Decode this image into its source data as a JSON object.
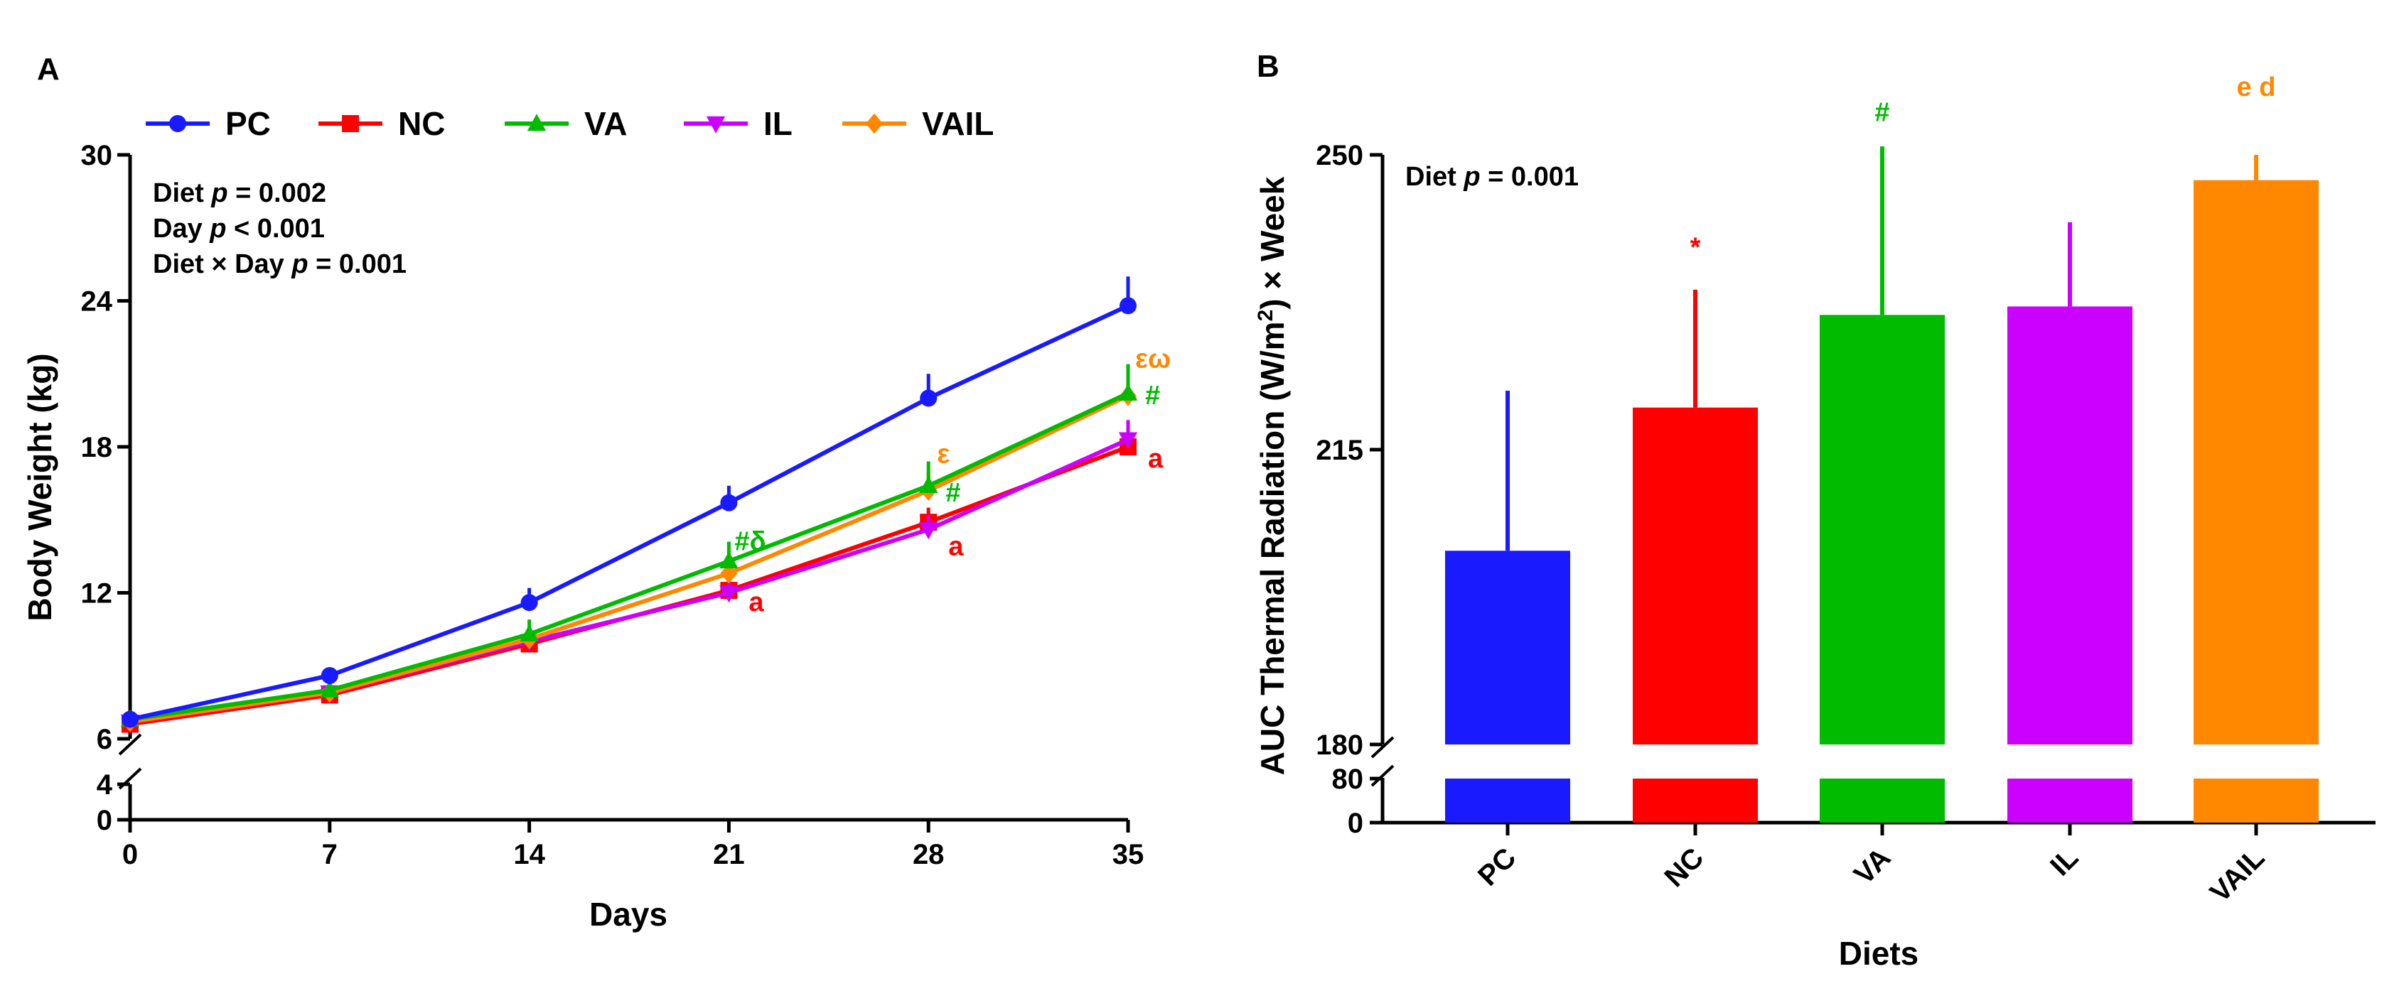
{
  "chart_data": [
    {
      "panel": "A",
      "type": "line",
      "xlabel": "Days",
      "ylabel": "Body Weight (kg)",
      "x": [
        0,
        7,
        14,
        21,
        28,
        35
      ],
      "xticks": [
        "0",
        "7",
        "14",
        "21",
        "28",
        "35"
      ],
      "yticks_upper": [
        "30",
        "24",
        "18",
        "12",
        "6"
      ],
      "yticks_lower": [
        "4",
        "0"
      ],
      "ylim": [
        0,
        30
      ],
      "axis_break": [
        4,
        6
      ],
      "legend_position": "top",
      "stats": [
        {
          "pre": "Diet ",
          "p": "p",
          "post": " = 0.002"
        },
        {
          "pre": "Day ",
          "p": "p",
          "post": " < 0.001"
        },
        {
          "pre": "Diet × Day ",
          "p": "p",
          "post": " = 0.001"
        }
      ],
      "series": [
        {
          "name": "PC",
          "marker": "circle",
          "color": "#1a1aff",
          "values": [
            6.8,
            8.6,
            11.6,
            15.7,
            20.0,
            23.8
          ],
          "err": [
            0.3,
            0.3,
            0.6,
            0.7,
            1.0,
            1.2
          ]
        },
        {
          "name": "NC",
          "marker": "square",
          "color": "#ff0000",
          "values": [
            6.6,
            7.8,
            9.9,
            12.1,
            14.9,
            18.0
          ],
          "err": [
            0.3,
            0.3,
            0.4,
            0.5,
            0.6,
            0.7
          ]
        },
        {
          "name": "VA",
          "marker": "triangle-up",
          "color": "#00bb00",
          "values": [
            6.8,
            8.0,
            10.3,
            13.3,
            16.4,
            20.2
          ],
          "err": [
            0.3,
            0.3,
            0.6,
            0.8,
            1.0,
            1.2
          ]
        },
        {
          "name": "IL",
          "marker": "triangle-down",
          "color": "#cc00ff",
          "values": [
            6.7,
            7.9,
            10.0,
            12.0,
            14.6,
            18.3
          ],
          "err": [
            0.3,
            0.3,
            0.4,
            0.5,
            0.6,
            0.8
          ]
        },
        {
          "name": "VAIL",
          "marker": "diamond",
          "color": "#ff8800",
          "values": [
            6.7,
            7.9,
            10.1,
            12.8,
            16.2,
            20.1
          ],
          "err": [
            0.3,
            0.3,
            0.4,
            0.6,
            0.8,
            1.0
          ]
        }
      ],
      "annotations": [
        {
          "text": "a",
          "color": "#ff0000",
          "x": 21,
          "y": 11.6
        },
        {
          "text": "#δ",
          "color": "#00bb00",
          "x": 21,
          "y": 14.1
        },
        {
          "text": "a",
          "color": "#ff0000",
          "x": 28,
          "y": 13.9
        },
        {
          "text": "#",
          "color": "#00bb00",
          "x": 28,
          "y": 16.1
        },
        {
          "text": "ε",
          "color": "#ff8800",
          "x": 28,
          "y": 17.7
        },
        {
          "text": "a",
          "color": "#ff0000",
          "x": 35,
          "y": 17.5
        },
        {
          "text": "#",
          "color": "#00bb00",
          "x": 35,
          "y": 20.1
        },
        {
          "text": "εω",
          "color": "#ff8800",
          "x": 35,
          "y": 21.6
        }
      ]
    },
    {
      "panel": "B",
      "type": "bar",
      "xlabel": "Diets",
      "ylabel_main": "AUC Thermal Radiation (W/m",
      "ylabel_sup": "2",
      "ylabel_tail": ") × Week",
      "categories": [
        "PC",
        "NC",
        "VA",
        "IL",
        "VAIL"
      ],
      "colors": [
        "#1a1aff",
        "#ff0000",
        "#00bb00",
        "#cc00ff",
        "#ff8800"
      ],
      "values": [
        203,
        220,
        231,
        232,
        247
      ],
      "err": [
        19,
        14,
        20,
        10,
        3
      ],
      "yticks_upper": [
        "250",
        "215",
        "180"
      ],
      "yticks_lower": [
        "80",
        "0"
      ],
      "ylim_upper": [
        180,
        250
      ],
      "axis_break": [
        80,
        180
      ],
      "stats": [
        {
          "pre": "Diet ",
          "p": "p",
          "post": " = 0.001"
        }
      ],
      "annotations": [
        {
          "text": "*",
          "color": "#ff0000",
          "category": "NC",
          "y": 238
        },
        {
          "text": "#",
          "color": "#00bb00",
          "category": "VA",
          "y": 254
        },
        {
          "text": "e d",
          "color": "#ff8800",
          "category": "VAIL",
          "y": 257
        }
      ]
    }
  ]
}
